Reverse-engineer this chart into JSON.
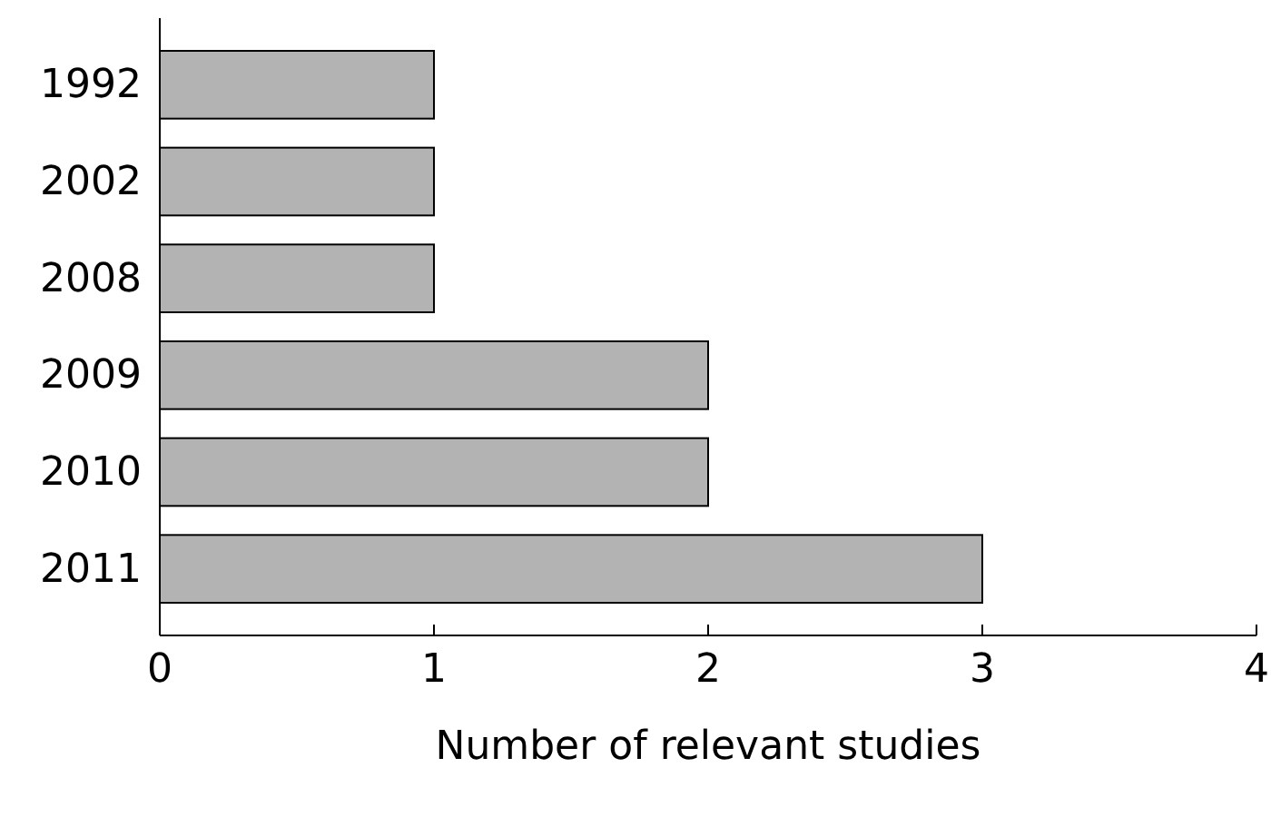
{
  "chart_data": {
    "type": "bar",
    "orientation": "horizontal",
    "xlabel": "Number of relevant studies",
    "categories": [
      "1992",
      "2002",
      "2008",
      "2009",
      "2010",
      "2011"
    ],
    "values": [
      1,
      1,
      1,
      2,
      2,
      3
    ],
    "color": "#b3b3b3",
    "xlim": [
      0,
      4
    ],
    "xticks": [
      0,
      1,
      2,
      3,
      4
    ],
    "grid": false
  }
}
